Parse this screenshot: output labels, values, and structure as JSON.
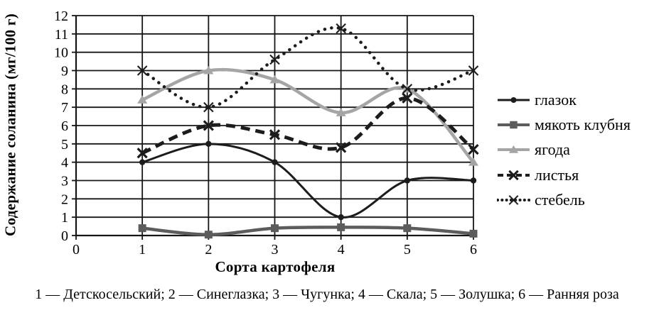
{
  "chart_data": {
    "type": "line",
    "title": "",
    "xlabel": "Сорта картофеля",
    "ylabel": "Содержание соланина (мг/100 г)",
    "x": [
      1,
      2,
      3,
      4,
      5,
      6
    ],
    "x_ticks": [
      0,
      1,
      2,
      3,
      4,
      5,
      6
    ],
    "y_ticks": [
      0,
      1,
      2,
      3,
      4,
      5,
      6,
      7,
      8,
      9,
      10,
      11,
      12
    ],
    "xlim": [
      0,
      6
    ],
    "ylim": [
      0,
      12
    ],
    "grid": true,
    "grid_color": "#161616",
    "text_color": "#000000",
    "legend_position": "right",
    "series": [
      {
        "name": "глазок",
        "values": [
          4,
          5,
          4,
          1,
          3,
          3
        ],
        "color": "#1c1c1c",
        "marker": "circle",
        "dash": "solid",
        "width": 3
      },
      {
        "name": "мякоть клубня",
        "values": [
          0.4,
          0.05,
          0.4,
          0.45,
          0.4,
          0.1
        ],
        "color": "#5c5c5c",
        "marker": "square",
        "dash": "solid",
        "width": 4.5
      },
      {
        "name": "ягода",
        "values": [
          7.4,
          9,
          8.5,
          6.7,
          8,
          4
        ],
        "color": "#a5a5a5",
        "marker": "triangle",
        "dash": "solid",
        "width": 4.5
      },
      {
        "name": "листья",
        "values": [
          4.5,
          6,
          5.5,
          4.8,
          7.5,
          4.7
        ],
        "color": "#1c1c1c",
        "marker": "x-bold",
        "dash": "dashed",
        "width": 5
      },
      {
        "name": "стебель",
        "values": [
          9,
          7,
          9.6,
          11.3,
          8,
          9
        ],
        "color": "#1c1c1c",
        "marker": "x",
        "dash": "dotted",
        "width": 4.5
      }
    ],
    "caption": "1 — Детскосельский; 2 — Синеглазка; 3 — Чугунка; 4 — Скала; 5 — Золушка; 6 — Ранняя роза"
  }
}
